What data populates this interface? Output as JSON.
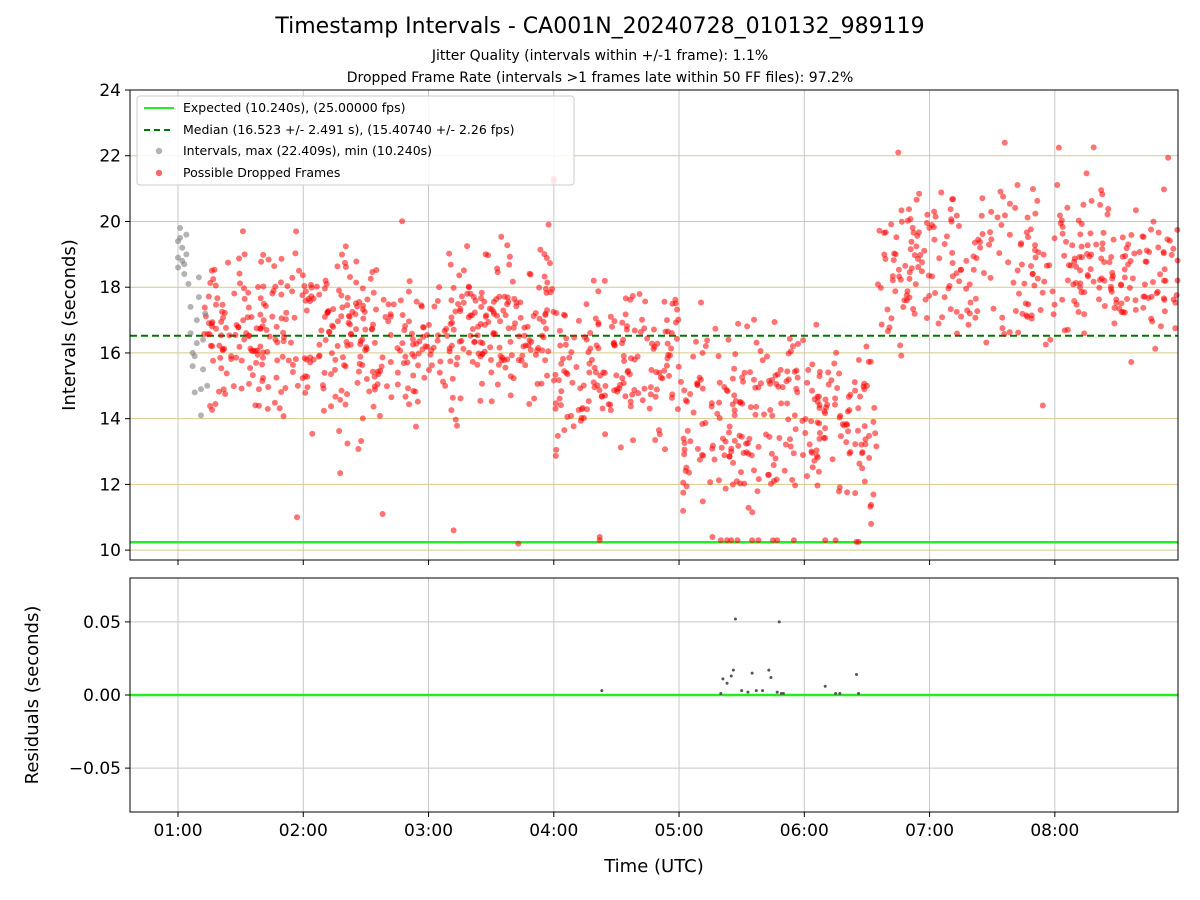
{
  "title": "Timestamp Intervals - CA001N_20240728_010132_989119",
  "subtitle_1": "Jitter Quality (intervals within +/-1 frame): 1.1%",
  "subtitle_2": "Dropped Frame Rate (intervals >1 frames late within 50 FF files): 97.2%",
  "colors": {
    "expected": "#22ee22",
    "median": "#007700",
    "intervals": "#808080",
    "dropped": "#ff0000",
    "grid_h": "#d8c98a",
    "grid_v": "#c8c8c8"
  },
  "chart_data": [
    {
      "type": "scatter",
      "title": "",
      "xlabel": "",
      "ylabel": "Intervals (seconds)",
      "xlim": [
        "00:37",
        "08:59"
      ],
      "ylim": [
        9.7,
        24
      ],
      "y_ticks": [
        "10",
        "12",
        "14",
        "16",
        "18",
        "20",
        "22",
        "24"
      ],
      "x_ticks": [
        "01:00",
        "02:00",
        "03:00",
        "04:00",
        "05:00",
        "06:00",
        "07:00",
        "08:00"
      ],
      "grid": "on",
      "legend_position": "top-left",
      "lines": [
        {
          "name": "Expected (10.240s), (25.00000 fps)",
          "y": 10.24,
          "style": "solid"
        },
        {
          "name": "Median (16.523 +/- 2.491 s), (15.40740 +/- 2.26 fps)",
          "y": 16.523,
          "style": "dashed"
        }
      ],
      "series": [
        {
          "name": "Intervals, max (22.409s), min (10.240s)",
          "points": [
            [
              "01:00",
              19.4
            ],
            [
              "01:00",
              18.9
            ],
            [
              "01:00",
              18.6
            ],
            [
              "01:01",
              19.8
            ],
            [
              "01:01",
              19.5
            ],
            [
              "01:02",
              19.2
            ],
            [
              "01:02",
              18.8
            ],
            [
              "01:03",
              18.4
            ],
            [
              "01:03",
              18.7
            ],
            [
              "01:04",
              19.0
            ],
            [
              "01:04",
              19.6
            ],
            [
              "01:05",
              18.1
            ],
            [
              "01:06",
              17.4
            ],
            [
              "01:06",
              16.6
            ],
            [
              "01:07",
              16.0
            ],
            [
              "01:07",
              15.6
            ],
            [
              "01:08",
              14.8
            ],
            [
              "01:08",
              15.9
            ],
            [
              "01:09",
              16.3
            ],
            [
              "01:09",
              17.0
            ],
            [
              "01:10",
              17.7
            ],
            [
              "01:10",
              18.3
            ],
            [
              "01:11",
              14.9
            ],
            [
              "01:11",
              14.1
            ],
            [
              "01:12",
              15.5
            ],
            [
              "01:12",
              16.4
            ],
            [
              "01:13",
              17.2
            ],
            [
              "01:14",
              15.0
            ]
          ]
        },
        {
          "name": "Possible Dropped Frames",
          "segments": [
            {
              "from": "01:12",
              "to": "02:00",
              "mean": 16.6,
              "spread": 2.0,
              "count": 150
            },
            {
              "from": "02:00",
              "to": "03:00",
              "mean": 16.4,
              "spread": 2.2,
              "count": 190
            },
            {
              "from": "03:00",
              "to": "04:00",
              "mean": 16.9,
              "spread": 2.0,
              "count": 190
            },
            {
              "from": "04:00",
              "to": "05:00",
              "mean": 15.6,
              "spread": 2.0,
              "count": 170
            },
            {
              "from": "05:00",
              "to": "06:00",
              "mean": 14.0,
              "spread": 2.3,
              "count": 170
            },
            {
              "from": "06:00",
              "to": "06:35",
              "mean": 14.1,
              "spread": 2.2,
              "count": 100
            },
            {
              "from": "06:35",
              "to": "08:59",
              "mean": 18.6,
              "spread": 2.0,
              "count": 340
            }
          ],
          "points": [
            [
              "04:00",
              21.3
            ],
            [
              "04:00",
              21.2
            ],
            [
              "07:36",
              22.4
            ],
            [
              "06:45",
              22.1
            ],
            [
              "03:43",
              10.2
            ],
            [
              "04:22",
              10.4
            ],
            [
              "04:22",
              10.3
            ],
            [
              "05:20",
              10.3
            ],
            [
              "05:23",
              10.3
            ],
            [
              "05:25",
              10.3
            ],
            [
              "05:28",
              10.3
            ],
            [
              "05:35",
              10.3
            ],
            [
              "05:38",
              10.3
            ],
            [
              "05:45",
              10.3
            ],
            [
              "05:47",
              10.3
            ],
            [
              "05:55",
              10.3
            ],
            [
              "06:10",
              10.3
            ],
            [
              "06:15",
              10.3
            ],
            [
              "06:25",
              10.25
            ],
            [
              "06:26",
              10.25
            ],
            [
              "05:16",
              10.4
            ],
            [
              "06:32",
              10.8
            ],
            [
              "02:38",
              11.1
            ],
            [
              "01:57",
              11.0
            ],
            [
              "03:12",
              10.6
            ]
          ]
        }
      ]
    },
    {
      "type": "scatter",
      "title": "",
      "xlabel": "Time (UTC)",
      "ylabel": "Residuals (seconds)",
      "xlim": [
        "00:37",
        "08:59"
      ],
      "ylim": [
        -0.08,
        0.08
      ],
      "y_ticks": [
        "−0.05",
        "0.00",
        "0.05"
      ],
      "x_ticks": [
        "01:00",
        "02:00",
        "03:00",
        "04:00",
        "05:00",
        "06:00",
        "07:00",
        "08:00"
      ],
      "grid": "on",
      "lines": [
        {
          "y": 0.0,
          "style": "solid"
        }
      ],
      "series": [
        {
          "points": [
            [
              "04:23",
              0.003
            ],
            [
              "05:20",
              0.001
            ],
            [
              "05:21",
              0.011
            ],
            [
              "05:23",
              0.008
            ],
            [
              "05:25",
              0.013
            ],
            [
              "05:26",
              0.017
            ],
            [
              "05:27",
              0.052
            ],
            [
              "05:30",
              0.003
            ],
            [
              "05:33",
              0.002
            ],
            [
              "05:35",
              0.015
            ],
            [
              "05:37",
              0.003
            ],
            [
              "05:40",
              0.003
            ],
            [
              "05:43",
              0.017
            ],
            [
              "05:44",
              0.012
            ],
            [
              "05:47",
              0.002
            ],
            [
              "05:48",
              0.05
            ],
            [
              "05:49",
              0.001
            ],
            [
              "05:50",
              0.001
            ],
            [
              "06:10",
              0.006
            ],
            [
              "06:15",
              0.001
            ],
            [
              "06:17",
              0.001
            ],
            [
              "06:25",
              0.014
            ],
            [
              "06:26",
              0.001
            ]
          ]
        }
      ]
    }
  ]
}
